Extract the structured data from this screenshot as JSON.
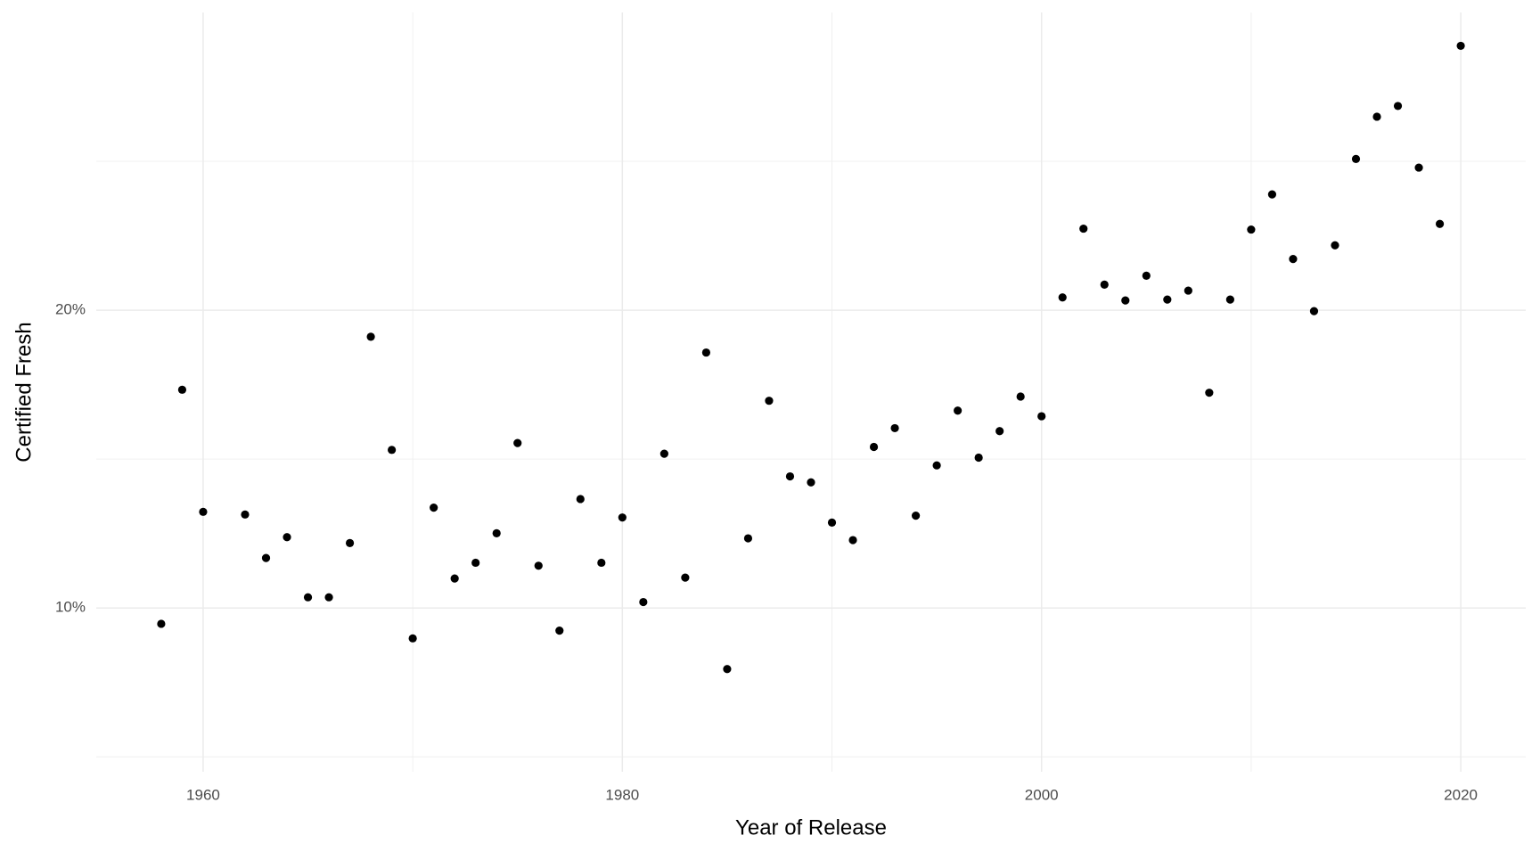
{
  "chart_data": {
    "type": "scatter",
    "x_label": "Year of Release",
    "y_label": "Certified Fresh",
    "x": [
      1958,
      1959,
      1960,
      1962,
      1963,
      1964,
      1965,
      1966,
      1967,
      1968,
      1969,
      1970,
      1971,
      1972,
      1973,
      1974,
      1975,
      1976,
      1977,
      1978,
      1979,
      1980,
      1981,
      1982,
      1983,
      1984,
      1985,
      1986,
      1987,
      1988,
      1989,
      1990,
      1991,
      1992,
      1993,
      1994,
      1995,
      1996,
      1997,
      1998,
      1999,
      2000,
      2001,
      2002,
      2003,
      2004,
      2005,
      2006,
      2007,
      2008,
      2009,
      2010,
      2011,
      2012,
      2013,
      2014,
      2015,
      2016,
      2017,
      2018,
      2019,
      2020
    ],
    "values": [
      9.47,
      17.33,
      13.23,
      13.14,
      11.68,
      12.38,
      10.36,
      10.36,
      12.18,
      19.11,
      15.31,
      8.98,
      13.37,
      10.99,
      11.52,
      12.51,
      15.54,
      11.42,
      9.24,
      13.66,
      11.52,
      13.04,
      10.2,
      15.18,
      11.02,
      18.58,
      7.95,
      12.34,
      16.96,
      14.42,
      14.22,
      12.87,
      12.28,
      15.41,
      16.04,
      13.1,
      14.79,
      16.63,
      15.05,
      15.94,
      17.1,
      16.44,
      20.43,
      22.74,
      20.86,
      20.33,
      21.16,
      20.36,
      20.66,
      17.23,
      20.36,
      22.71,
      23.89,
      21.72,
      19.97,
      22.18,
      25.08,
      26.5,
      26.86,
      24.79,
      22.9,
      28.88
    ],
    "color": "#000000",
    "xlim": [
      1954.9,
      2023.1
    ],
    "xticks": [
      1960,
      1980,
      2000,
      2020
    ],
    "minor_xticks": [
      1970,
      1990,
      2010
    ],
    "ylim": [
      4.5,
      30
    ],
    "yticks": [
      {
        "value": 10,
        "label": "10%"
      },
      {
        "value": 20,
        "label": "20%"
      }
    ],
    "minor_yticks": [
      5,
      15,
      25
    ],
    "grid": true
  }
}
